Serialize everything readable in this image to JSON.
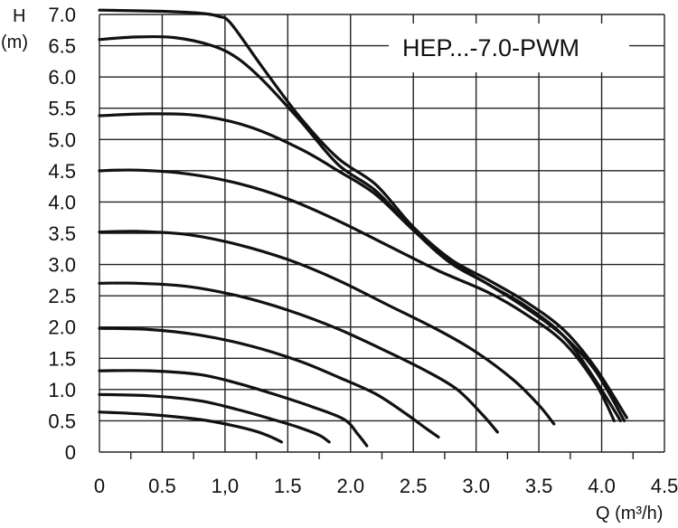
{
  "chart_data": {
    "type": "line",
    "title": "HEP...-7.0-PWM",
    "ylabel": "H",
    "yunit": "(m)",
    "xlabel": "Q (m³/h)",
    "xlim": [
      0,
      4.5
    ],
    "ylim": [
      0,
      7.0
    ],
    "x_ticks": [
      "0",
      "0.5",
      "1,0",
      "1.5",
      "2.0",
      "2.5",
      "3.0",
      "3.5",
      "4.0",
      "4.5"
    ],
    "x_tick_values": [
      0,
      0.5,
      1.0,
      1.5,
      2.0,
      2.5,
      3.0,
      3.5,
      4.0,
      4.5
    ],
    "y_ticks": [
      "0",
      "0.5",
      "1.0",
      "1.5",
      "2.0",
      "2.5",
      "3.0",
      "3.5",
      "4.0",
      "4.5",
      "5.0",
      "5.5",
      "6.0",
      "6.5",
      "7.0"
    ],
    "y_tick_values": [
      0,
      0.5,
      1.0,
      1.5,
      2.0,
      2.5,
      3.0,
      3.5,
      4.0,
      4.5,
      5.0,
      5.5,
      6.0,
      6.5,
      7.0
    ],
    "grid": true,
    "series": [
      {
        "x": [
          0,
          0.5,
          0.8,
          0.95,
          1.05,
          1.3,
          1.6,
          1.9,
          2.2,
          2.5,
          2.8,
          3.1,
          3.4,
          3.7,
          3.95,
          4.2
        ],
        "y": [
          7.07,
          7.05,
          7.02,
          6.97,
          6.85,
          6.15,
          5.35,
          4.7,
          4.28,
          3.6,
          3.08,
          2.75,
          2.4,
          1.95,
          1.35,
          0.55
        ]
      },
      {
        "x": [
          0,
          0.3,
          0.6,
          0.9,
          1.1,
          1.3,
          1.6,
          1.9,
          2.2,
          2.5,
          2.8,
          3.1,
          3.4,
          3.7,
          3.95,
          4.18
        ],
        "y": [
          6.6,
          6.64,
          6.63,
          6.5,
          6.3,
          5.95,
          5.3,
          4.6,
          4.18,
          3.55,
          3.02,
          2.68,
          2.3,
          1.85,
          1.3,
          0.5
        ]
      },
      {
        "x": [
          0,
          0.4,
          0.8,
          1.2,
          1.6,
          1.9,
          2.2,
          2.5,
          2.8,
          3.1,
          3.4,
          3.7,
          3.95,
          4.15
        ],
        "y": [
          5.38,
          5.41,
          5.38,
          5.2,
          4.85,
          4.5,
          4.12,
          3.55,
          3.05,
          2.68,
          2.33,
          1.85,
          1.15,
          0.5
        ]
      },
      {
        "x": [
          0,
          0.3,
          0.7,
          1.1,
          1.5,
          1.9,
          2.3,
          2.7,
          3.1,
          3.4,
          3.7,
          3.95,
          4.1
        ],
        "y": [
          4.5,
          4.51,
          4.45,
          4.3,
          4.05,
          3.7,
          3.3,
          2.9,
          2.55,
          2.2,
          1.75,
          1.1,
          0.5
        ]
      },
      {
        "x": [
          0,
          0.3,
          0.7,
          1.1,
          1.5,
          1.9,
          2.3,
          2.7,
          3.0,
          3.3,
          3.5,
          3.62
        ],
        "y": [
          3.52,
          3.53,
          3.48,
          3.32,
          3.08,
          2.75,
          2.35,
          1.95,
          1.6,
          1.15,
          0.75,
          0.45
        ]
      },
      {
        "x": [
          0,
          0.3,
          0.7,
          1.1,
          1.5,
          1.9,
          2.3,
          2.6,
          2.85,
          3.05,
          3.17
        ],
        "y": [
          2.7,
          2.7,
          2.65,
          2.5,
          2.27,
          1.97,
          1.6,
          1.3,
          1.0,
          0.6,
          0.32
        ]
      },
      {
        "x": [
          0,
          0.4,
          0.8,
          1.2,
          1.6,
          1.9,
          2.2,
          2.45,
          2.6,
          2.7
        ],
        "y": [
          1.98,
          1.96,
          1.87,
          1.7,
          1.45,
          1.2,
          0.93,
          0.6,
          0.38,
          0.24
        ]
      },
      {
        "x": [
          0,
          0.4,
          0.8,
          1.1,
          1.4,
          1.7,
          1.95,
          2.06,
          2.13
        ],
        "y": [
          1.3,
          1.3,
          1.24,
          1.1,
          0.92,
          0.72,
          0.52,
          0.28,
          0.1
        ]
      },
      {
        "x": [
          0,
          0.4,
          0.8,
          1.1,
          1.35,
          1.58,
          1.75,
          1.83
        ],
        "y": [
          0.92,
          0.9,
          0.82,
          0.68,
          0.54,
          0.4,
          0.27,
          0.16
        ]
      },
      {
        "x": [
          0,
          0.4,
          0.8,
          1.05,
          1.25,
          1.38,
          1.45
        ],
        "y": [
          0.64,
          0.6,
          0.52,
          0.43,
          0.33,
          0.23,
          0.16
        ]
      }
    ]
  }
}
